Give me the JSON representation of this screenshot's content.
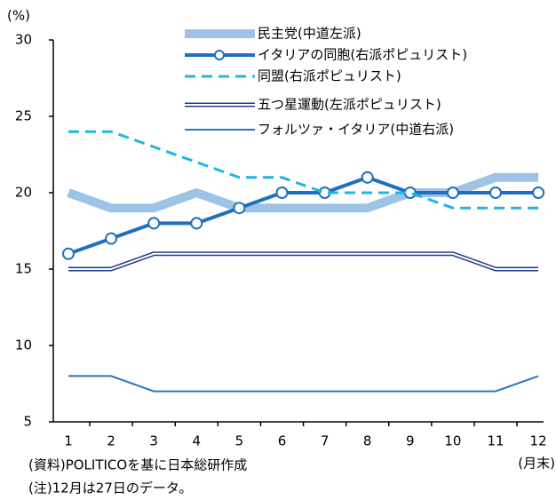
{
  "chart_data": {
    "type": "line",
    "unit_label": "(%)",
    "x_unit_label": "(月末)",
    "notes": [
      "(資料)POLITICOを基に日本総研作成",
      "(注)12月は27日のデータ。"
    ],
    "categories": [
      "1",
      "2",
      "3",
      "4",
      "5",
      "6",
      "7",
      "8",
      "9",
      "10",
      "11",
      "12"
    ],
    "ylim": [
      5,
      30
    ],
    "yticks": [
      5,
      10,
      15,
      20,
      25,
      30
    ],
    "series": [
      {
        "name": "民主党(中道左派)",
        "color": "#9dc3e6",
        "style": "thick",
        "values": [
          20,
          19,
          19,
          20,
          19,
          19,
          19,
          19,
          20,
          20,
          21,
          21
        ]
      },
      {
        "name": "イタリアの同胞(右派ポピュリスト)",
        "color": "#1f6fc0",
        "style": "marker",
        "values": [
          16,
          17,
          18,
          18,
          19,
          20,
          20,
          21,
          20,
          20,
          20,
          20
        ]
      },
      {
        "name": "同盟(右派ポピュリスト)",
        "color": "#1fb5e8",
        "style": "dashed",
        "values": [
          24,
          24,
          23,
          22,
          21,
          21,
          20,
          20,
          20,
          19,
          19,
          19
        ]
      },
      {
        "name": "五つ星運動(左派ポピュリスト)",
        "color": "#1f3c88",
        "style": "double",
        "values": [
          15,
          15,
          16,
          16,
          16,
          16,
          16,
          16,
          16,
          16,
          15,
          15
        ]
      },
      {
        "name": "フォルツァ・イタリア(中道右派)",
        "color": "#2e75b6",
        "style": "solid",
        "values": [
          8,
          8,
          7,
          7,
          7,
          7,
          7,
          7,
          7,
          7,
          7,
          8
        ]
      }
    ]
  }
}
